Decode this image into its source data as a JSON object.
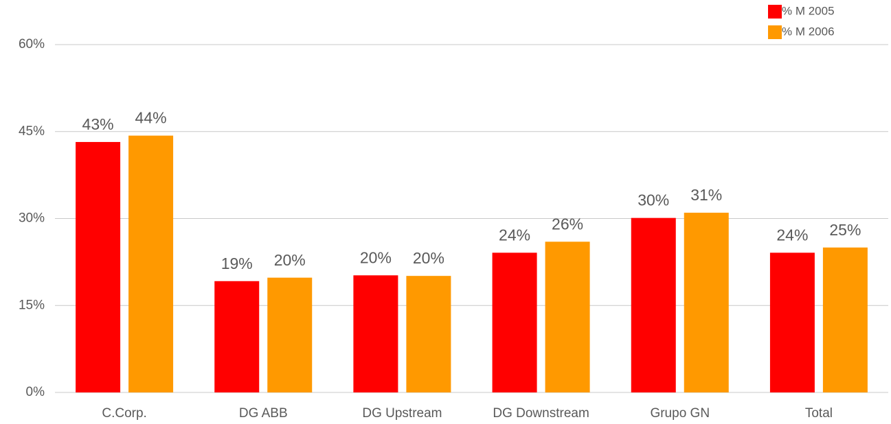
{
  "chart_data": {
    "type": "bar",
    "categories": [
      "C.Corp.",
      "DG ABB",
      "DG Upstream",
      "DG Downstream",
      "Grupo GN",
      "Total"
    ],
    "series": [
      {
        "name": "% M 2005",
        "color": "#ff0000",
        "values": [
          43.2,
          19.2,
          20.2,
          24.1,
          30.1,
          24.1
        ],
        "value_labels": [
          "43%",
          "19%",
          "20%",
          "24%",
          "30%",
          "24%"
        ]
      },
      {
        "name": "% M 2006",
        "color": "#ff9900",
        "values": [
          44.3,
          19.8,
          20.1,
          26.0,
          31.0,
          25.0
        ],
        "value_labels": [
          "44%",
          "20%",
          "20%",
          "26%",
          "31%",
          "25%"
        ]
      }
    ],
    "ylim": [
      0,
      60
    ],
    "yticks": [
      {
        "value": 0,
        "label": "0%"
      },
      {
        "value": 15,
        "label": "15%"
      },
      {
        "value": 30,
        "label": "30%"
      },
      {
        "value": 45,
        "label": "45%"
      },
      {
        "value": 60,
        "label": "60%"
      }
    ],
    "grid": true,
    "legend": "top-right"
  }
}
